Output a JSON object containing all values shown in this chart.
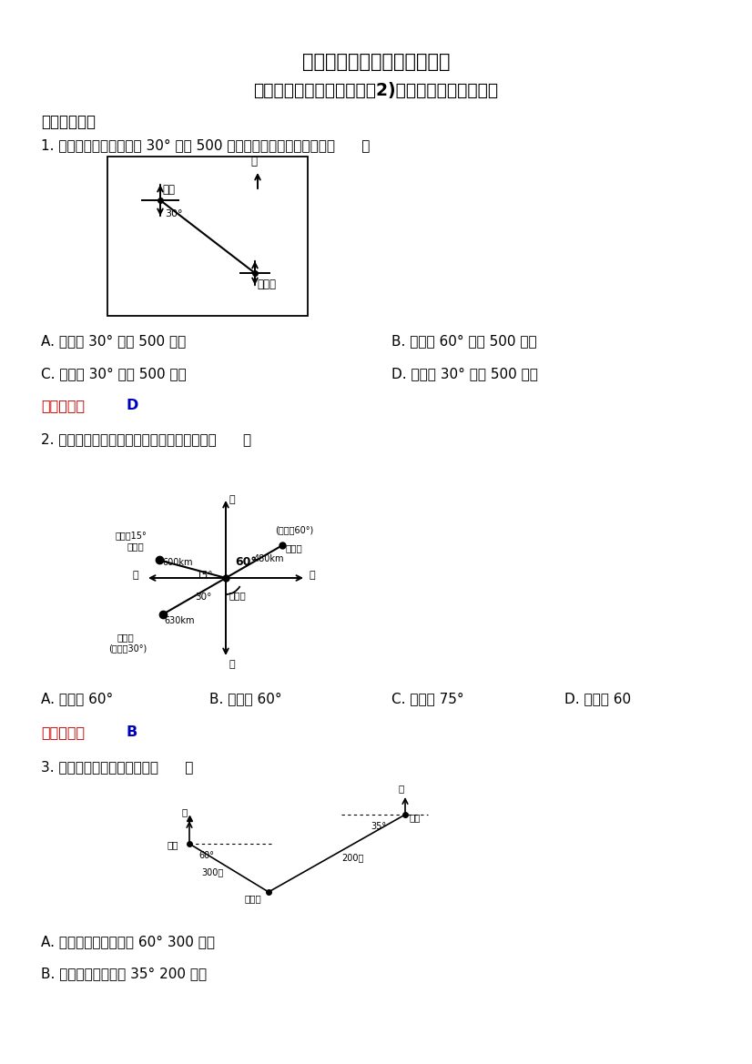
{
  "title1": "新苏教版小学数学六年级下册",
  "title2": "《用方向和距离确定位置（2)》同步练习及参考答案",
  "section1": "一、选择题。",
  "q1": "1. 图书馆在剧院的东偏南 30° 方向 500 米处，那么剧院在图书馆的（      ）",
  "q1_opts_AB": [
    "A. 东偏南 30° 方向 500 米处",
    "B. 南偏东 60° 方向 500 米处"
  ],
  "q1_opts_CD": [
    "C. 北偏西 30° 方向 500 米处",
    "D. 西偏北 30° 方向 500 米处"
  ],
  "q1_ans_label": "【答案】：",
  "q1_ans_val": "D",
  "q2": "2. 如图，以雷达站观测点，鱼雷艇的位置是（      ）",
  "q2_opts": [
    "A. 东偏北 60°",
    "B. 北偏东 60°",
    "C. 东偏北 75°",
    "D. 南偏东 60"
  ],
  "q2_ans_label": "【答案】：",
  "q2_ans_val": "B",
  "q3": "3. 如图，下面说法正确的是（      ）",
  "q3_optA": "A. 小红家在广场东偏北 60° 300 米处",
  "q3_optB": "B. 广场在学校南偏东 35° 200 米处",
  "bg_color": "#ffffff",
  "answer_red": "#cc0000",
  "answer_blue": "#0000bb"
}
